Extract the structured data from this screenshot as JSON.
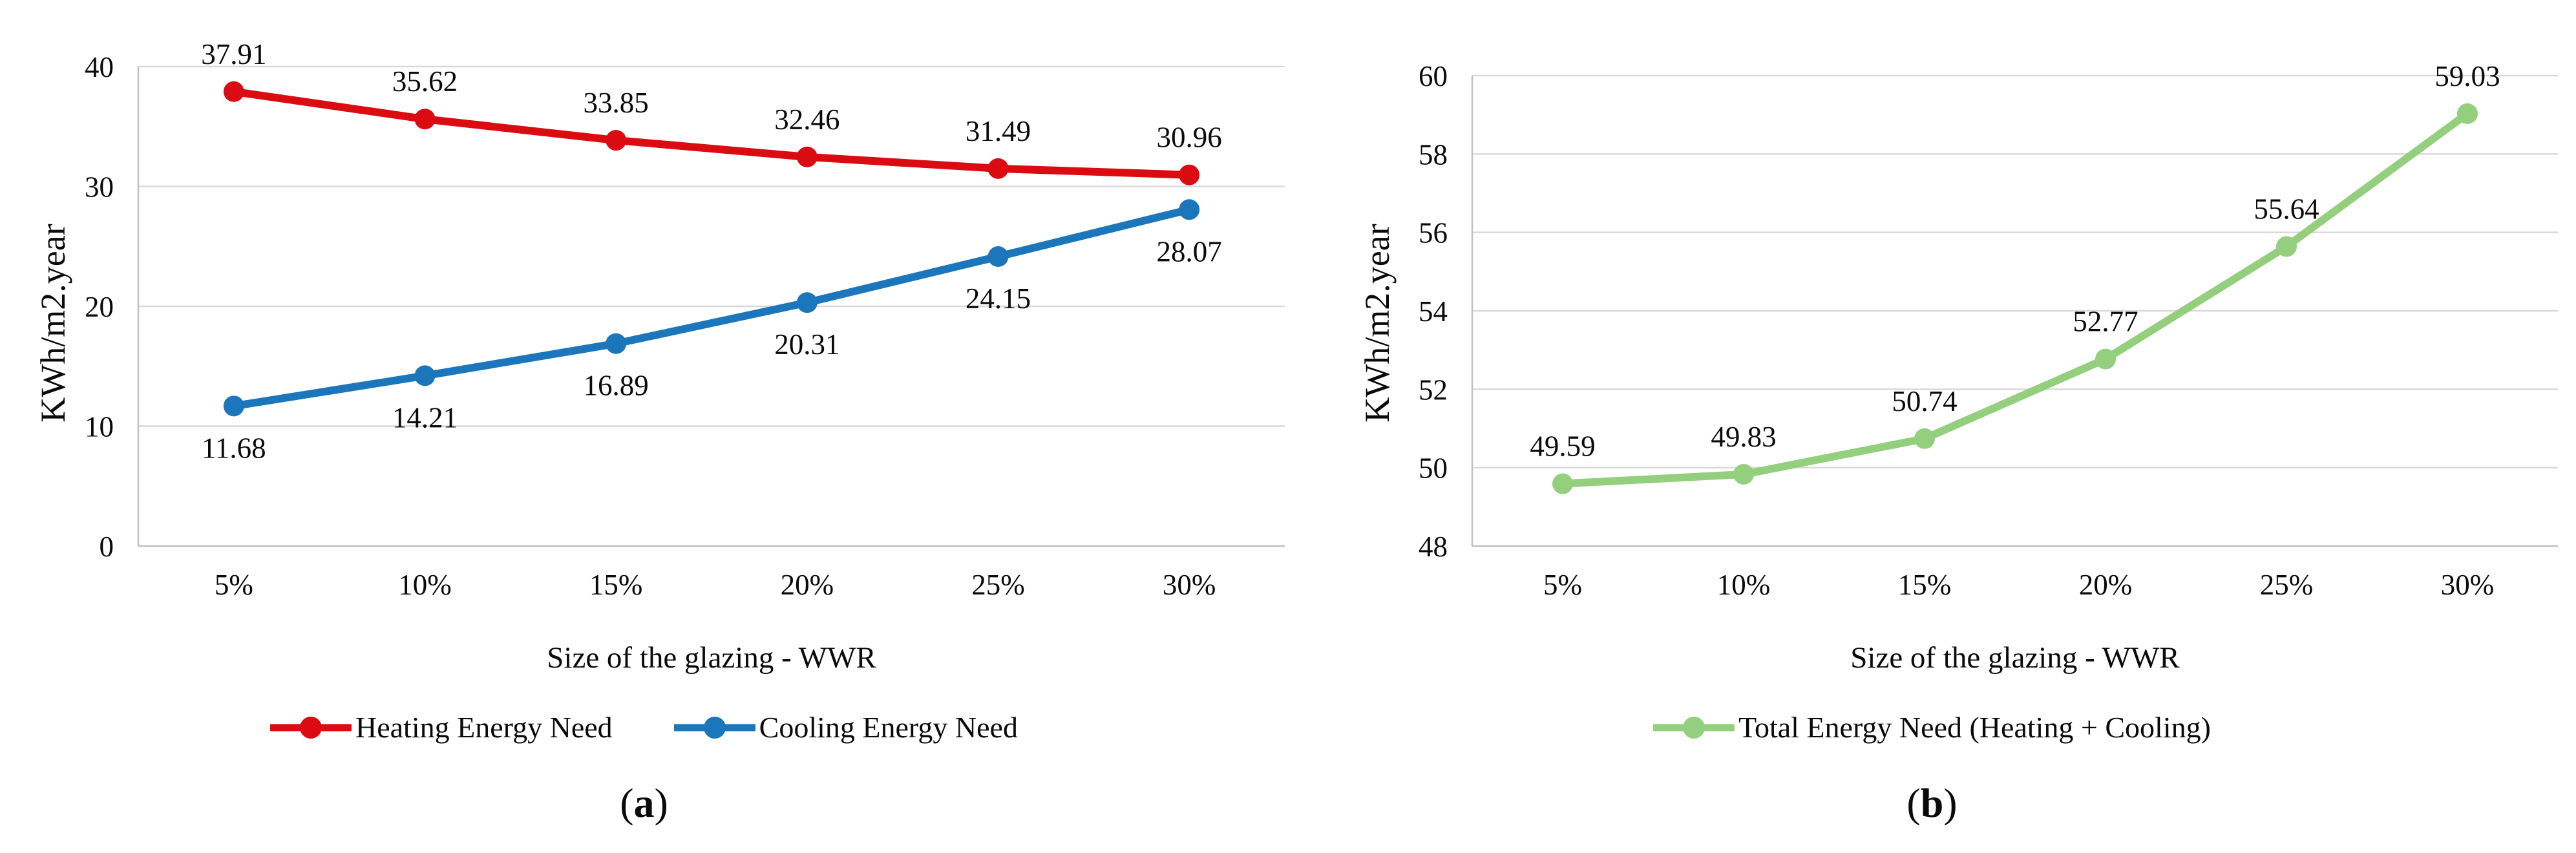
{
  "style": {
    "background": "#FFFFFF",
    "grid_color": "#D9D9D9",
    "axis_color": "#C0C0C0",
    "text_color": "#0A0A0A",
    "heating_color": "#DB0B12",
    "cooling_color": "#1B76BC",
    "total_color": "#93CF7D"
  },
  "chart_data": [
    {
      "type": "line",
      "panel": {
        "prefix": "(",
        "label": "a",
        "suffix": ")"
      },
      "ylabel": "KWh/m2.year",
      "xlabel": "Size of the glazing - WWR",
      "categories": [
        "5%",
        "10%",
        "15%",
        "20%",
        "25%",
        "30%"
      ],
      "ylim": [
        0,
        40
      ],
      "yticks": [
        0,
        10,
        20,
        30,
        40
      ],
      "grid": true,
      "legend_position": "bottom",
      "series": [
        {
          "name": "Heating Energy Need",
          "color": "#DB0B12",
          "marker": "circle",
          "label_position": "above",
          "values": [
            37.91,
            35.62,
            33.85,
            32.46,
            31.49,
            30.96
          ],
          "data_labels": [
            "37.91",
            "35.62",
            "33.85",
            "32.46",
            "31.49",
            "30.96"
          ]
        },
        {
          "name": "Cooling Energy Need",
          "color": "#1B76BC",
          "marker": "circle",
          "label_position": "below",
          "values": [
            11.68,
            14.21,
            16.89,
            20.31,
            24.15,
            28.07
          ],
          "data_labels": [
            "11.68",
            "14.21",
            "16.89",
            "20.31",
            "24.15",
            "28.07"
          ]
        }
      ]
    },
    {
      "type": "line",
      "panel": {
        "prefix": "(",
        "label": "b",
        "suffix": ")"
      },
      "ylabel": "KWh/m2.year",
      "xlabel": "Size of the glazing - WWR",
      "categories": [
        "5%",
        "10%",
        "15%",
        "20%",
        "25%",
        "30%"
      ],
      "ylim": [
        48,
        60
      ],
      "yticks": [
        48,
        50,
        52,
        54,
        56,
        58,
        60
      ],
      "grid": true,
      "legend_position": "bottom",
      "series": [
        {
          "name": "Total Energy Need (Heating + Cooling)",
          "color": "#93CF7D",
          "marker": "circle",
          "label_position": "above",
          "values": [
            49.59,
            49.83,
            50.74,
            52.77,
            55.64,
            59.03
          ],
          "data_labels": [
            "49.59",
            "49.83",
            "50.74",
            "52.77",
            "55.64",
            "59.03"
          ]
        }
      ]
    }
  ]
}
